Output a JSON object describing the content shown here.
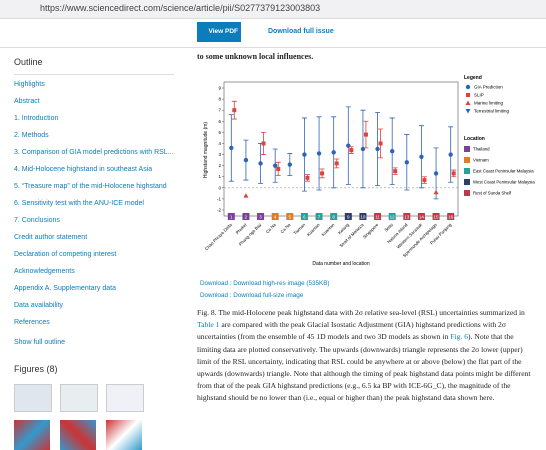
{
  "browser": {
    "url": "https://www.sciencedirect.com/science/article/pii/S0277379123003803"
  },
  "toolbar": {
    "view_pdf": "View PDF",
    "download_issue": "Download full issue"
  },
  "sidebar": {
    "title": "Outline",
    "items": [
      "Highlights",
      "Abstract",
      "1. Introduction",
      "2. Methods",
      "3. Comparison of GIA model predictions with RSL...",
      "4. Mid-Holocene highstand in southeast Asia",
      "5. “Treasure map” of the mid-Holocene highstand",
      "6. Sensitivity test with the ANU-ICE model",
      "7. Conclusions",
      "Credit author statement",
      "Declaration of competing interest",
      "Acknowledgements",
      "Appendix A. Supplementary data",
      "Data availability",
      "References"
    ],
    "show_full": "Show full outline",
    "figures": "Figures (8)"
  },
  "article": {
    "lead": "to some unknown local influences.",
    "downloads": [
      "Download : Download high-res image (535KB)",
      "Download : Download full-size image"
    ],
    "caption": [
      "Fig. 8. The mid-Holocene peak highstand data with 2σ relative sea-level (RSL) uncertainties summarized in ",
      "Table 1",
      " are compared with the peak Glacial Isostatic Adjustment (GIA) highstand predictions with 2σ uncertainties (from the ensemble of 45 1D models and two 3D models as shown in ",
      "Fig. 6",
      "). Note that the limiting data are plotted conservatively. The upwards (downwards) triangle represents the 2σ lower (upper) limit of the RSL uncertainty, indicating that RSL could be anywhere at or above (below) the flat part of the upwards (downwards) triangle. Note that although the timing of peak highstand data points might be different from that of the peak GIA highstand predictions (e.g., 6.5 ka BP with ICE-6G_C), the magnitude of the highstand should be no lower than (i.e., equal or higher than) the peak highstand data shown here."
    ]
  },
  "chart_data": {
    "type": "errorbar",
    "y_label": "Highstand magnitude (m)",
    "x_label": "Data number and location",
    "categories": [
      "1",
      "2",
      "3",
      "4",
      "5",
      "6",
      "7",
      "8",
      "9",
      "10",
      "11",
      "12",
      "13",
      "14",
      "15",
      "16"
    ],
    "locations": [
      "Chao Phraya Delta",
      "Phuket",
      "Phang-nga Bay",
      "Ca Na",
      "Ca Na",
      "Tioman",
      "Kuantan",
      "Kuantan",
      "Kelang",
      "Strait of Malacca",
      "Singapore",
      "Setiu",
      "Natuna Island",
      "Western Sarawak",
      "Spermonde Archipelago",
      "Pulau Panjang"
    ],
    "location_colors": [
      "#7b3fa0",
      "#7b3fa0",
      "#7b3fa0",
      "#e07b28",
      "#e07b28",
      "#2aa198",
      "#2aa198",
      "#2aa198",
      "#2d3e6b",
      "#2d3e6b",
      "#b83a4b",
      "#2aa198",
      "#b83a4b",
      "#b83a4b",
      "#b83a4b",
      "#b83a4b"
    ],
    "ylim": [
      -2,
      9
    ],
    "yticks": [
      -2,
      -1,
      0,
      1,
      2,
      3,
      4,
      5,
      6,
      7,
      8,
      9
    ],
    "series": [
      {
        "name": "GIA Prediction",
        "color": "#2f64b5",
        "marker": "circle",
        "values": [
          3.6,
          2.5,
          2.2,
          2.0,
          2.1,
          3.0,
          3.1,
          3.2,
          3.8,
          3.5,
          3.5,
          3.3,
          2.3,
          2.8,
          1.3,
          3.0
        ],
        "errors": [
          3.0,
          1.8,
          1.8,
          1.5,
          1.0,
          3.3,
          3.3,
          3.2,
          3.5,
          3.5,
          3.3,
          3.0,
          2.5,
          2.8,
          2.3,
          2.5
        ]
      },
      {
        "name": "SLIP",
        "color": "#e0413a",
        "marker": "square",
        "values": [
          7.0,
          null,
          4.0,
          1.7,
          null,
          0.9,
          1.3,
          2.2,
          3.4,
          4.8,
          4.0,
          1.5,
          null,
          0.7,
          null,
          1.3
        ],
        "errors": [
          0.8,
          null,
          1.0,
          0.6,
          null,
          0.3,
          0.4,
          0.4,
          0.3,
          1.2,
          1.3,
          0.3,
          null,
          0.3,
          null,
          0.3
        ]
      },
      {
        "name": "Marine limiting",
        "color": "#e0413a",
        "marker": "triangle",
        "values": [
          null,
          -0.7,
          null,
          null,
          null,
          null,
          null,
          null,
          null,
          null,
          null,
          null,
          null,
          null,
          -0.4,
          null
        ]
      },
      {
        "name": "Terrestrial limiting",
        "color": "#2f64b5",
        "marker": "triangle-down",
        "values": [
          null,
          null,
          null,
          null,
          null,
          null,
          null,
          null,
          null,
          null,
          null,
          null,
          null,
          null,
          null,
          null
        ]
      }
    ],
    "legend_title": "Legend",
    "location_title": "Location",
    "location_legend": [
      {
        "name": "Thailand",
        "color": "#7b3fa0"
      },
      {
        "name": "Vietnam",
        "color": "#e07b28"
      },
      {
        "name": "East Coast Peninsular Malaysia",
        "color": "#2aa198"
      },
      {
        "name": "West Coast Peninsular Malaysia",
        "color": "#2d3e6b"
      },
      {
        "name": "Rest of Sunda Shelf",
        "color": "#b83a4b"
      }
    ]
  }
}
